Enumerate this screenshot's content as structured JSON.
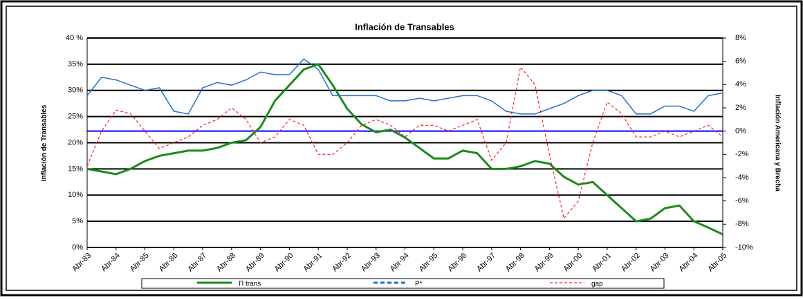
{
  "chart_data": {
    "type": "line",
    "title": "Inflación de Transables",
    "ylabel": "Inflación de Transables",
    "y2label": "Inflación Americana y Brecha",
    "categories": [
      "Abr-83",
      null,
      "Abr-84",
      null,
      "Abr-85",
      null,
      "Abr-86",
      null,
      "Abr-87",
      null,
      "Abr-88",
      null,
      "Abr-89",
      null,
      "Abr-90",
      null,
      "Abr-91",
      null,
      "Abr-92",
      null,
      "Abr-93",
      null,
      "Abr-94",
      null,
      "Abr-95",
      null,
      "Abr-96",
      null,
      "Abr-97",
      null,
      "Abr-98",
      null,
      "Abr-99",
      null,
      "Abr-00",
      null,
      "Abr-01",
      null,
      "Abr-02",
      null,
      "Abr-03",
      null,
      "Abr-04",
      null,
      "Abr-05"
    ],
    "series": [
      {
        "name": "Π trans",
        "color": "#1a8a1a",
        "values": [
          15,
          14.5,
          14,
          15,
          16.5,
          17.5,
          18,
          18.5,
          18.5,
          19,
          20,
          20.5,
          23,
          28,
          31,
          34,
          35,
          31,
          26.5,
          23.5,
          22,
          22.5,
          21,
          19,
          17,
          17,
          18.5,
          18,
          15,
          15,
          15.5,
          16.5,
          16,
          13.5,
          12,
          12.5,
          10,
          7.5,
          5,
          5.5,
          7.5,
          8,
          5,
          3.8,
          2.5
        ]
      },
      {
        "name": "P*",
        "color": "#1f6fd0",
        "values": [
          29,
          32.5,
          32,
          31,
          30,
          30.5,
          26,
          25.5,
          30.5,
          31.5,
          31,
          32,
          33.5,
          33,
          33,
          36,
          34,
          29,
          29,
          29,
          29,
          28,
          28,
          28.5,
          28,
          28.5,
          29,
          29,
          28,
          26,
          25.5,
          25.5,
          26.5,
          27.5,
          29,
          30,
          30,
          29,
          25.5,
          25.5,
          27,
          27,
          26,
          29,
          29.5
        ]
      },
      {
        "name": "gap",
        "color": "#ff2020",
        "axis": "y2",
        "values": [
          -3,
          0,
          1.8,
          1.5,
          0,
          -1.5,
          -1,
          -0.5,
          0.5,
          1,
          2,
          1,
          -1,
          -0.5,
          1,
          0.5,
          -2,
          -2,
          -1,
          0.5,
          1,
          0.5,
          -0.5,
          0.5,
          0.5,
          0,
          0.5,
          1,
          -2.5,
          -1,
          5.5,
          4,
          -2,
          -7.5,
          -6,
          -1,
          2.5,
          1.5,
          -0.5,
          -0.5,
          0,
          -0.5,
          0,
          0.5,
          -0.5
        ]
      }
    ],
    "ylim": [
      0,
      40
    ],
    "yticks": [
      {
        "value": 0,
        "label": "0%"
      },
      {
        "value": 5,
        "label": "5%"
      },
      {
        "value": 10,
        "label": "10%"
      },
      {
        "value": 15,
        "label": "15%"
      },
      {
        "value": 20,
        "label": "20%"
      },
      {
        "value": 25,
        "label": "25%"
      },
      {
        "value": 30,
        "label": "30%"
      },
      {
        "value": 35,
        "label": "35%"
      },
      {
        "value": 40,
        "label": "40 %"
      }
    ],
    "y2lim": [
      -10,
      8
    ],
    "y2ticks": [
      {
        "value": -10,
        "label": "-10%"
      },
      {
        "value": -8,
        "label": "-8%"
      },
      {
        "value": -6,
        "label": "-6%"
      },
      {
        "value": -4,
        "label": "-4%"
      },
      {
        "value": -2,
        "label": "-2%"
      },
      {
        "value": 0,
        "label": "0%"
      },
      {
        "value": 2,
        "label": "2%"
      },
      {
        "value": 4,
        "label": "4%"
      },
      {
        "value": 6,
        "label": "6%"
      },
      {
        "value": 8,
        "label": "8%"
      }
    ],
    "grid": true
  }
}
